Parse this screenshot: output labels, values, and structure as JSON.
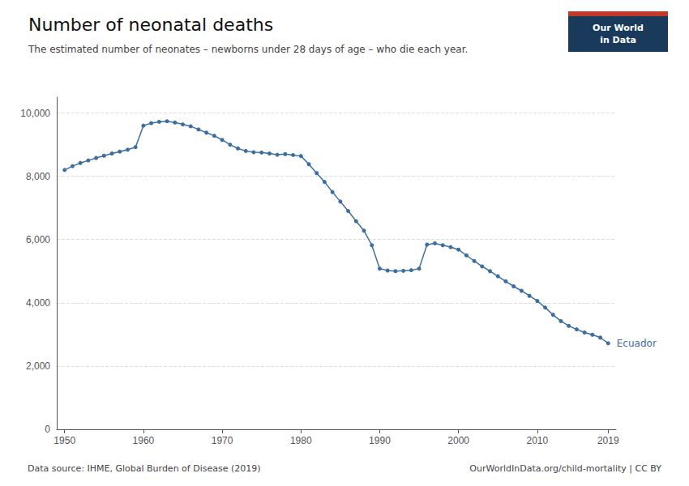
{
  "chart_data": {
    "type": "line",
    "title": "Number of neonatal deaths",
    "subtitle": "The estimated number of neonates – newborns under 28 days of age – who die each year.",
    "annotations": [
      "Ecuador",
      "Data source: IHME, Global Burden of Disease (2019)",
      "OurWorldInData.org/child-mortality | CC BY",
      "Our World\nin Data"
    ],
    "x": [
      1950,
      1951,
      1952,
      1953,
      1954,
      1955,
      1956,
      1957,
      1958,
      1959,
      1960,
      1961,
      1962,
      1963,
      1964,
      1965,
      1966,
      1967,
      1968,
      1969,
      1970,
      1971,
      1972,
      1973,
      1974,
      1975,
      1976,
      1977,
      1978,
      1979,
      1980,
      1981,
      1982,
      1983,
      1984,
      1985,
      1986,
      1987,
      1988,
      1989,
      1990,
      1991,
      1992,
      1993,
      1994,
      1995,
      1996,
      1997,
      1998,
      1999,
      2000,
      2001,
      2002,
      2003,
      2004,
      2005,
      2006,
      2007,
      2008,
      2009,
      2010,
      2011,
      2012,
      2013,
      2014,
      2015,
      2016,
      2017,
      2018,
      2019
    ],
    "values": [
      8200,
      8320,
      8420,
      8500,
      8580,
      8650,
      8720,
      8780,
      8840,
      8920,
      9600,
      9680,
      9720,
      9740,
      9700,
      9640,
      9580,
      9480,
      9380,
      9280,
      9150,
      9000,
      8880,
      8800,
      8760,
      8750,
      8720,
      8680,
      8700,
      8670,
      8640,
      8380,
      8100,
      7820,
      7500,
      7200,
      6900,
      6580,
      6280,
      5820,
      5080,
      5020,
      5000,
      5010,
      5030,
      5080,
      5840,
      5880,
      5820,
      5760,
      5680,
      5500,
      5320,
      5150,
      5000,
      4840,
      4680,
      4520,
      4380,
      4220,
      4060,
      3850,
      3620,
      3420,
      3270,
      3160,
      3060,
      2990,
      2900,
      2720
    ],
    "color": "#3d6ea0",
    "marker": "circle",
    "xlim": [
      1949,
      2020
    ],
    "xticks": [
      1950,
      1960,
      1970,
      1980,
      1990,
      2000,
      2010,
      2019
    ],
    "ylim": [
      0,
      10500
    ],
    "yticks": [
      0,
      {
        "value": 2000,
        "label": "2,000"
      },
      {
        "value": 4000,
        "label": "4,000"
      },
      {
        "value": 6000,
        "label": "6,000"
      },
      {
        "value": 8000,
        "label": "8,000"
      },
      {
        "value": 10000,
        "label": "10,000"
      }
    ],
    "grid": true
  }
}
